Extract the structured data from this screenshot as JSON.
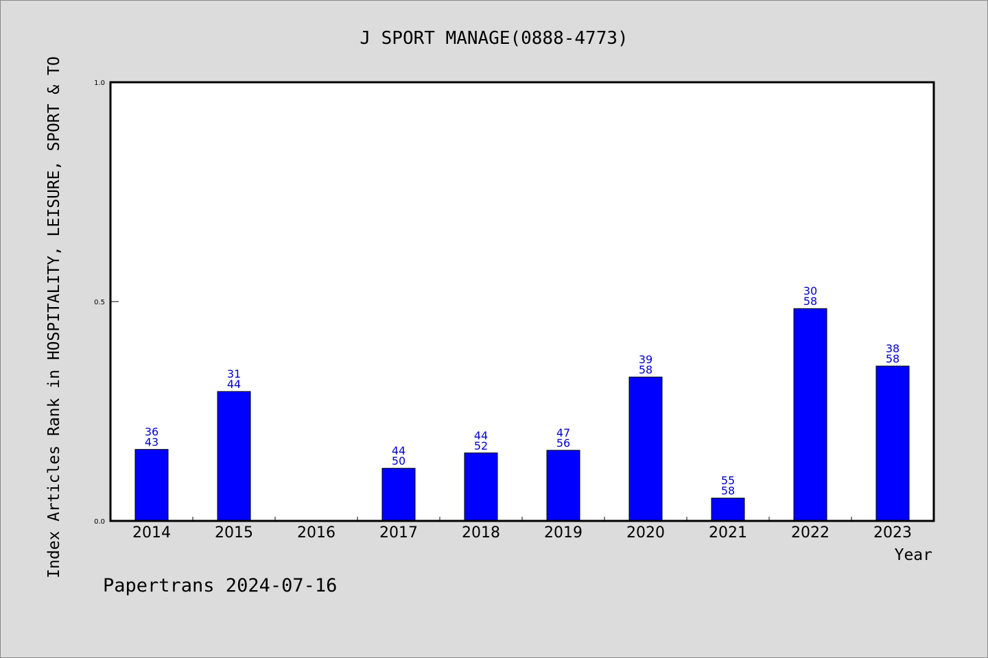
{
  "chart_data": {
    "type": "bar",
    "title": "J SPORT MANAGE(0888-4773)",
    "xlabel": "Year",
    "ylabel": "Index Articles Rank in HOSPITALITY, LEISURE, SPORT & TO",
    "ylim": [
      0,
      1.0
    ],
    "yticks": [
      "0.0",
      "0.5",
      "1.0"
    ],
    "categories": [
      "2014",
      "2015",
      "2016",
      "2017",
      "2018",
      "2019",
      "2020",
      "2021",
      "2022",
      "2023"
    ],
    "values": [
      0.163,
      0.295,
      null,
      0.12,
      0.155,
      0.161,
      0.328,
      0.052,
      0.484,
      0.353
    ],
    "labels_top": [
      "36",
      "31",
      "",
      "44",
      "44",
      "47",
      "39",
      "55",
      "30",
      "38"
    ],
    "labels_bottom": [
      "43",
      "44",
      "",
      "50",
      "52",
      "56",
      "58",
      "58",
      "58",
      "58"
    ],
    "bar_color": "#0000ff",
    "label_color": "#0000cc",
    "grid": false
  },
  "footer": "Papertrans 2024-07-16"
}
